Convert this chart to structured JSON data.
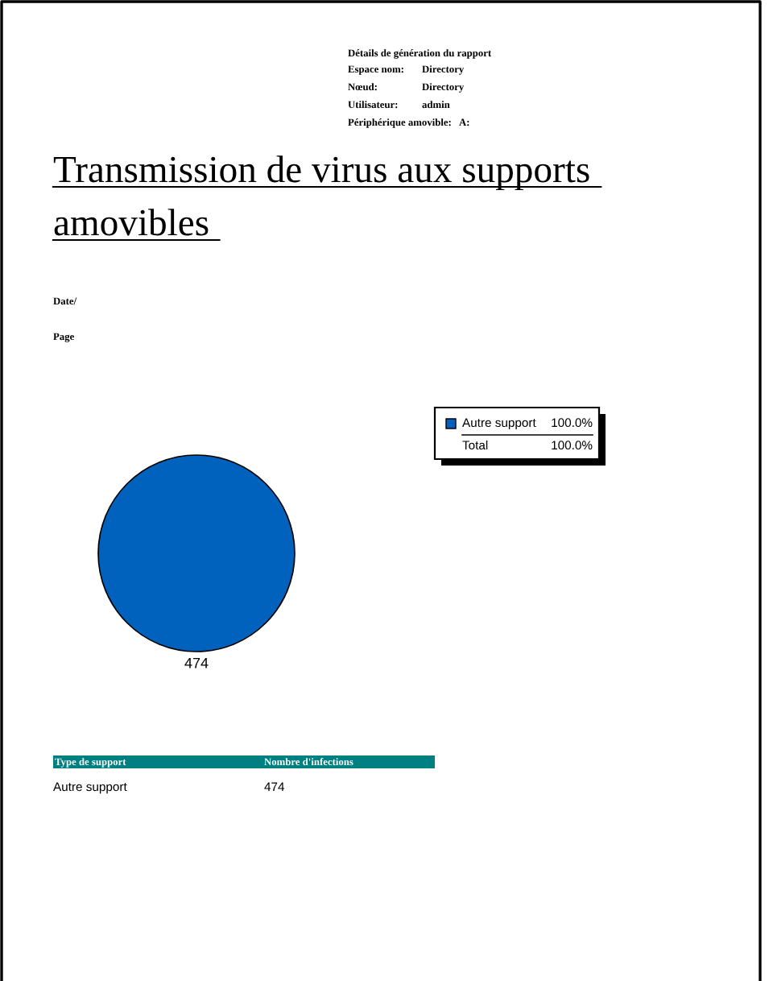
{
  "chart_data": {
    "type": "pie",
    "title": "Transmission de virus aux supports amovibles",
    "categories": [
      "Autre support"
    ],
    "values": [
      474
    ],
    "colors": [
      "#0062bd"
    ],
    "data_labels": true,
    "legend": "top right",
    "annotations": [
      "Détails de génération du rapport",
      "Espace nom:",
      "Directory",
      "Nœud:",
      "Directory",
      "Utilisateur:",
      "admin",
      "Périphérique amovible:",
      "A:",
      "Date/",
      "Page",
      "100.0%",
      "Total",
      "100.0%",
      "Type de support",
      "Nombre d'infections",
      "474"
    ]
  }
}
